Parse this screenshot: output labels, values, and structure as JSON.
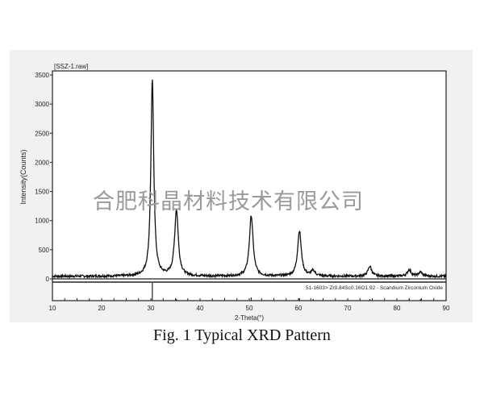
{
  "chart_data": {
    "type": "line",
    "file_label": "[SSZ-1.raw]",
    "xlabel": "2-Theta(°)",
    "ylabel": "Intensity(Counts)",
    "xlim": [
      10,
      90
    ],
    "ylim": [
      0,
      3500
    ],
    "x_ticks": [
      10,
      20,
      30,
      40,
      50,
      60,
      70,
      80,
      90
    ],
    "y_ticks": [
      0,
      500,
      1000,
      1500,
      2000,
      2500,
      3000,
      3500
    ],
    "background_counts": 45,
    "peaks": [
      {
        "two_theta": 30.3,
        "intensity": 3380
      },
      {
        "two_theta": 35.2,
        "intensity": 1130
      },
      {
        "two_theta": 50.4,
        "intensity": 1040
      },
      {
        "two_theta": 60.2,
        "intensity": 780
      },
      {
        "two_theta": 63.0,
        "intensity": 90
      },
      {
        "two_theta": 74.5,
        "intensity": 170
      },
      {
        "two_theta": 82.5,
        "intensity": 110
      },
      {
        "two_theta": 84.8,
        "intensity": 70
      }
    ],
    "reference": {
      "label": "51-1603> Zr0.84Sc0.16O1.92 - Scandium Zirconium Oxide",
      "lines": [
        30.3,
        35.2,
        50.4,
        60.2,
        63.0,
        74.5,
        82.5,
        84.8
      ],
      "relative": [
        100,
        5,
        18,
        14,
        2,
        3,
        3,
        2
      ]
    },
    "grid": false
  },
  "caption": "Fig. 1 Typical XRD Pattern",
  "watermark": "合肥科晶材料技术有限公司"
}
